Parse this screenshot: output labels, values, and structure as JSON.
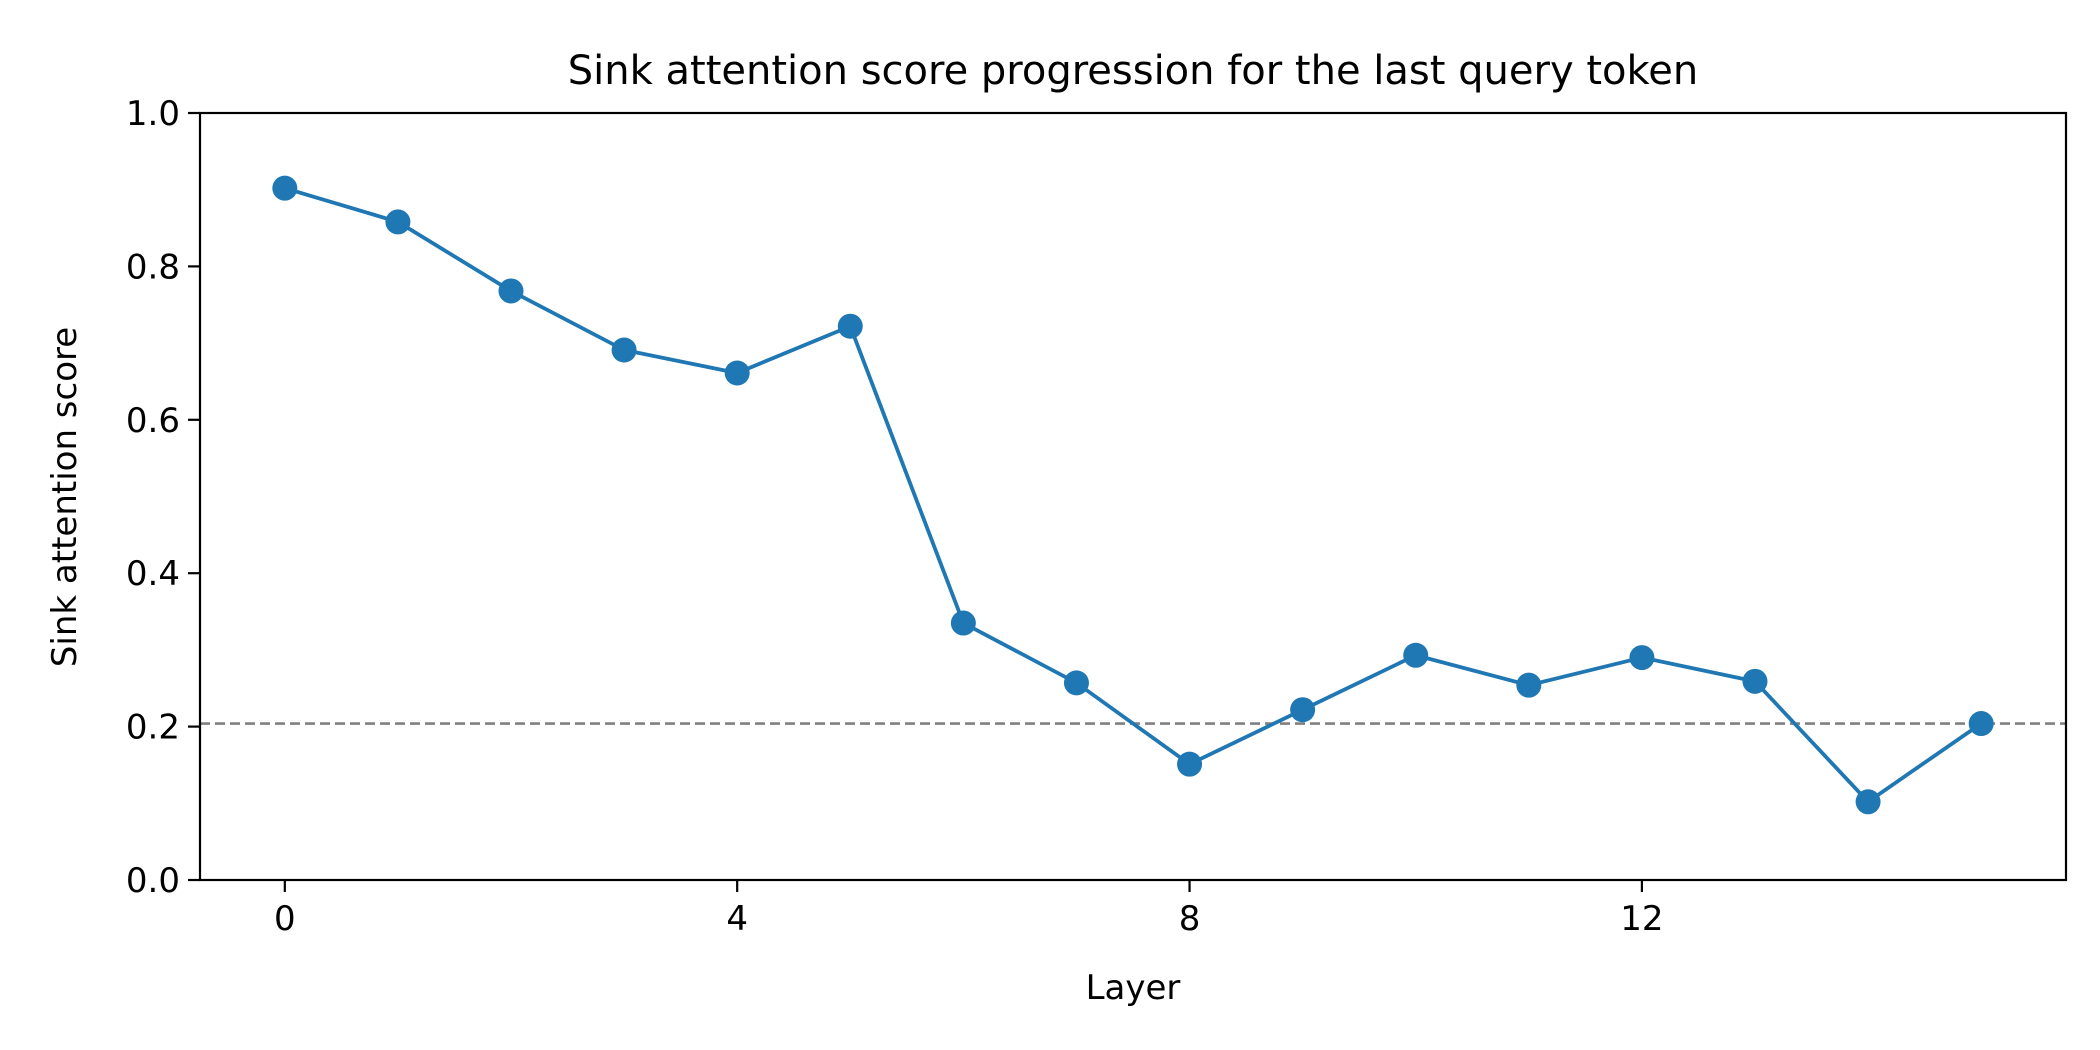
{
  "chart_data": {
    "type": "line",
    "title": "Sink attention score progression for the last query token",
    "xlabel": "Layer",
    "ylabel": "Sink attention score",
    "xlim": [
      -0.75,
      15.75
    ],
    "ylim": [
      0.0,
      1.0
    ],
    "xticks": [
      0,
      4,
      8,
      12
    ],
    "xtick_labels": [
      "0",
      "4",
      "8",
      "12"
    ],
    "yticks": [
      0.0,
      0.2,
      0.4,
      0.6,
      0.8,
      1.0
    ],
    "ytick_labels": [
      "0.0",
      "0.2",
      "0.4",
      "0.6",
      "0.8",
      "1.0"
    ],
    "grid": false,
    "legend": "none",
    "series": [
      {
        "color": "#1f77b4",
        "marker": "circle",
        "x": [
          0,
          1,
          2,
          3,
          4,
          5,
          6,
          7,
          8,
          9,
          10,
          11,
          12,
          13,
          14,
          15
        ],
        "y": [
          0.902,
          0.858,
          0.768,
          0.691,
          0.661,
          0.722,
          0.335,
          0.257,
          0.151,
          0.222,
          0.293,
          0.254,
          0.29,
          0.259,
          0.102,
          0.204
        ]
      }
    ],
    "reference_line": {
      "orientation": "horizontal",
      "y": 0.204,
      "color": "#808080",
      "style": "dashed"
    }
  }
}
